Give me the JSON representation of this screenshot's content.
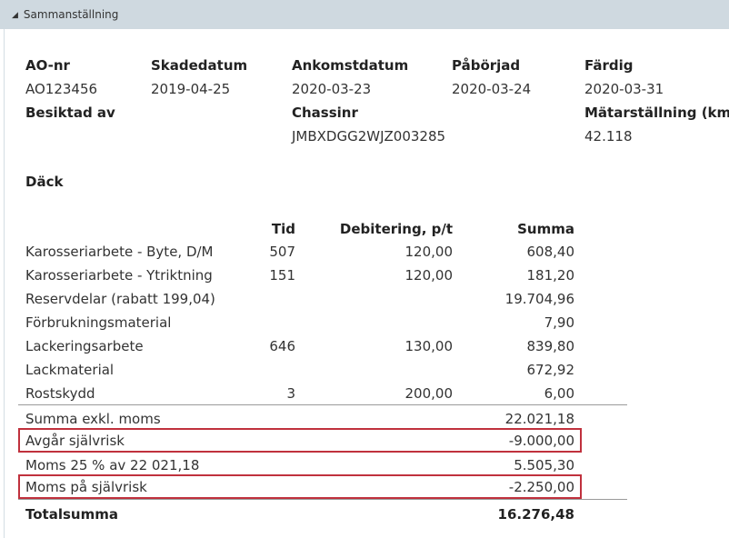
{
  "section": {
    "title": "Sammanställning",
    "toggle_icon": "collapse-triangle-icon"
  },
  "info": {
    "ao_nr": {
      "label": "AO-nr",
      "value": "AO123456"
    },
    "skadedatum": {
      "label": "Skadedatum",
      "value": "2019-04-25"
    },
    "ankomstdatum": {
      "label": "Ankomstdatum",
      "value": "2020-03-23"
    },
    "paborjad": {
      "label": "Påbörjad",
      "value": "2020-03-24"
    },
    "fardig": {
      "label": "Färdig",
      "value": "2020-03-31"
    },
    "besiktad_av": {
      "label": "Besiktad av",
      "value": ""
    },
    "chassinr": {
      "label": "Chassinr",
      "value": "JMBXDGG2WJZ003285"
    },
    "matarstallning": {
      "label": "Mätarställning (km)",
      "value": "42.118"
    }
  },
  "dack_label": "Däck",
  "table": {
    "headers": {
      "tid": "Tid",
      "debitering": "Debitering, p/t",
      "summa": "Summa"
    },
    "rows": [
      {
        "label": "Karosseriarbete - Byte, D/M",
        "tid": "507",
        "debitering": "120,00",
        "summa": "608,40"
      },
      {
        "label": "Karosseriarbete - Ytriktning",
        "tid": "151",
        "debitering": "120,00",
        "summa": "181,20"
      },
      {
        "label": "Reservdelar (rabatt 199,04)",
        "tid": "",
        "debitering": "",
        "summa": "19.704,96"
      },
      {
        "label": "Förbrukningsmaterial",
        "tid": "",
        "debitering": "",
        "summa": "7,90"
      },
      {
        "label": "Lackeringsarbete",
        "tid": "646",
        "debitering": "130,00",
        "summa": "839,80"
      },
      {
        "label": "Lackmaterial",
        "tid": "",
        "debitering": "",
        "summa": "672,92"
      },
      {
        "label": "Rostskydd",
        "tid": "3",
        "debitering": "200,00",
        "summa": "6,00"
      }
    ]
  },
  "summary": {
    "rows": [
      {
        "label": "Summa exkl. moms",
        "summa": "22.021,18"
      },
      {
        "label": "Avgår självrisk",
        "summa": "-9.000,00"
      },
      {
        "label": "Moms 25 % av 22 021,18",
        "summa": "5.505,30"
      },
      {
        "label": "Moms på självrisk",
        "summa": "-2.250,00"
      }
    ],
    "total": {
      "label": "Totalsumma",
      "summa": "16.276,48"
    }
  },
  "colors": {
    "header_bg": "#cfd9e0",
    "highlight_border": "#c0313d"
  }
}
